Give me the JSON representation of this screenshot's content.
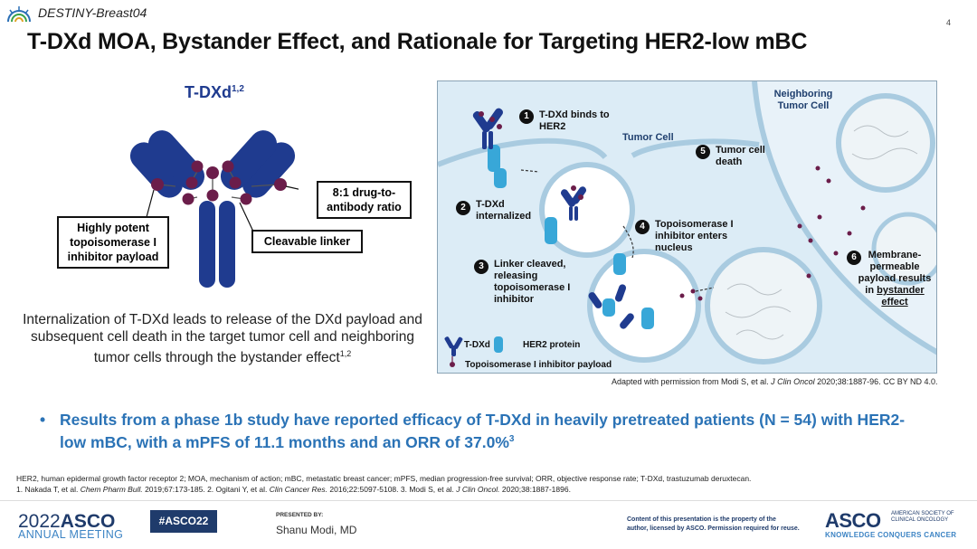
{
  "header": {
    "study_tag": "DESTINY-Breast04",
    "page_number": "4"
  },
  "title": "T-DXd MOA, Bystander Effect, and Rationale for Targeting HER2-low mBC",
  "left_panel": {
    "label": "T-DXd",
    "label_sup": "1,2",
    "callout_ratio": "8:1 drug-to-antibody ratio",
    "callout_payload": "Highly potent topoisomerase I inhibitor payload",
    "callout_linker": "Cleavable linker",
    "caption": "Internalization of T-DXd leads to release of the DXd payload and subsequent cell death in the target tumor cell and neighboring tumor cells through the bystander effect",
    "caption_sup": "1,2"
  },
  "figure": {
    "neighboring_cell": "Neighboring Tumor Cell",
    "tumor_cell": "Tumor Cell",
    "steps": [
      {
        "num": "1",
        "text": "T-DXd binds to HER2"
      },
      {
        "num": "2",
        "text": "T-DXd internalized"
      },
      {
        "num": "3",
        "text": "Linker cleaved, releasing topoisomerase I inhibitor"
      },
      {
        "num": "4",
        "text": "Topoisomerase I inhibitor enters nucleus"
      },
      {
        "num": "5",
        "text": "Tumor cell death"
      },
      {
        "num": "6",
        "text_a": "Membrane-permeable payload results in",
        "text_b": "bystander effect"
      }
    ],
    "legend": {
      "tdxd": "T-DXd",
      "her2": "HER2 protein",
      "payload": "Topoisomerase I inhibitor payload"
    },
    "credit_pre": "Adapted with permission from Modi S, et al.",
    "credit_journal": "J Clin Oncol",
    "credit_post": "2020;38:1887-96. CC BY ND 4.0."
  },
  "bullet": {
    "text": "Results from a phase 1b study have reported efficacy of T-DXd in heavily pretreated patients (N = 54) with HER2-low mBC, with a mPFS of 11.1 months and an ORR of 37.0%",
    "sup": "3"
  },
  "footnotes": {
    "abbreviations": "HER2, human epidermal growth factor receptor 2; MOA, mechanism of action; mBC, metastatic breast cancer; mPFS, median progression-free survival; ORR, objective response rate; T-DXd, trastuzumab deruxtecan.",
    "ref1_pre": "1. Nakada T, et al.",
    "ref1_j": "Chem Pharm Bull.",
    "ref1_post": "2019;67:173-185. 2. Ogitani Y, et al.",
    "ref2_j": "Clin Cancer Res.",
    "ref2_post": "2016;22:5097-5108. 3. Modi S, et al.",
    "ref3_j": "J Clin Oncol.",
    "ref3_post": "2020;38:1887-1896."
  },
  "footer": {
    "year": "2022",
    "brand": "ASCO",
    "meeting": "ANNUAL MEETING",
    "hashtag": "#ASCO22",
    "presented_by": "PRESENTED BY:",
    "presenter": "Shanu Modi, MD",
    "content_note_1": "Content of this presentation is the property of the",
    "content_note_2": "author, licensed by ASCO. Permission required for reuse.",
    "asco_brand": "ASCO",
    "society_1": "AMERICAN SOCIETY OF",
    "society_2": "CLINICAL ONCOLOGY",
    "tagline": "KNOWLEDGE CONQUERS CANCER"
  },
  "colors": {
    "antibody_blue": "#1f3b8f",
    "payload_purple": "#6b1d4a",
    "her2_cyan": "#38a7d8",
    "accent_blue": "#2b73b6",
    "figure_bg": "#dcecf6"
  }
}
